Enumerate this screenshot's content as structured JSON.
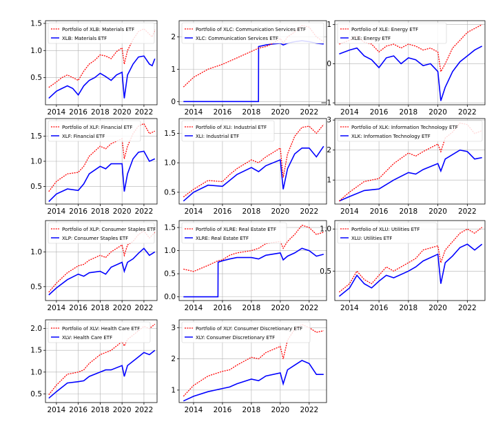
{
  "figure": {
    "colors": {
      "portfolio": "#ff0000",
      "etf": "#0000ff",
      "grid": "#b0b0b0",
      "axis": "#000000"
    },
    "x_ticks": [
      2014,
      2016,
      2018,
      2020,
      2022
    ]
  },
  "chart_data": [
    {
      "type": "line",
      "title": "",
      "xlabel": "",
      "ylabel": "",
      "xlim": [
        2013.0,
        2023.2
      ],
      "ylim": [
        0.0,
        1.55
      ],
      "yticks": [
        0.5,
        1.0,
        1.5
      ],
      "ytick_labels": [
        "0.5",
        "1.0",
        "1.5"
      ],
      "grid": true,
      "legend_position": "upper-left",
      "x": [
        2013.3,
        2014.0,
        2014.5,
        2015.0,
        2015.5,
        2016.0,
        2016.5,
        2017.0,
        2017.5,
        2018.0,
        2018.5,
        2019.0,
        2019.5,
        2020.0,
        2020.2,
        2020.5,
        2021.0,
        2021.5,
        2022.0,
        2022.5,
        2022.75,
        2023.0
      ],
      "series": [
        {
          "name": "Portfolio of XLB: Materials ETF",
          "role": "portfolio",
          "values": [
            0.32,
            0.42,
            0.5,
            0.55,
            0.5,
            0.45,
            0.62,
            0.75,
            0.82,
            0.92,
            0.9,
            0.85,
            0.98,
            1.05,
            0.75,
            1.0,
            1.2,
            1.35,
            1.4,
            1.3,
            1.25,
            1.38
          ]
        },
        {
          "name": "XLB: Materials ETF",
          "role": "etf",
          "values": [
            0.12,
            0.25,
            0.3,
            0.35,
            0.3,
            0.18,
            0.35,
            0.45,
            0.5,
            0.58,
            0.52,
            0.45,
            0.55,
            0.6,
            0.12,
            0.55,
            0.75,
            0.88,
            0.9,
            0.75,
            0.72,
            0.85
          ]
        }
      ]
    },
    {
      "type": "line",
      "title": "",
      "xlabel": "",
      "ylabel": "",
      "xlim": [
        2013.0,
        2023.2
      ],
      "ylim": [
        -0.1,
        2.5
      ],
      "yticks": [
        0,
        1,
        2
      ],
      "ytick_labels": [
        "0",
        "1",
        "2"
      ],
      "grid": true,
      "legend_position": "upper-left",
      "x": [
        2013.3,
        2014.0,
        2015.0,
        2016.0,
        2017.0,
        2018.0,
        2018.49,
        2018.5,
        2019.0,
        2019.5,
        2020.0,
        2020.2,
        2020.5,
        2021.0,
        2021.5,
        2022.0,
        2022.5,
        2023.0
      ],
      "series": [
        {
          "name": "Portfolio of XLC: Communication Services ETF",
          "role": "portfolio",
          "values": [
            0.45,
            0.75,
            1.0,
            1.15,
            1.35,
            1.55,
            1.65,
            1.65,
            1.7,
            1.8,
            1.95,
            1.8,
            2.0,
            2.15,
            2.35,
            2.3,
            2.0,
            1.85
          ]
        },
        {
          "name": "XLC: Communication Services ETF",
          "role": "etf",
          "values": [
            0,
            0,
            0,
            0,
            0,
            0,
            0,
            1.7,
            1.75,
            1.78,
            1.8,
            1.75,
            1.8,
            1.85,
            1.88,
            1.85,
            1.8,
            1.78
          ]
        }
      ]
    },
    {
      "type": "line",
      "title": "",
      "xlabel": "",
      "ylabel": "",
      "xlim": [
        2013.0,
        2023.2
      ],
      "ylim": [
        -1.05,
        1.1
      ],
      "yticks": [
        -1,
        0,
        1
      ],
      "ytick_labels": [
        "−1",
        "0",
        "1"
      ],
      "grid": true,
      "legend_position": "upper-left",
      "x": [
        2013.3,
        2014.0,
        2014.5,
        2015.0,
        2015.5,
        2016.0,
        2016.5,
        2017.0,
        2017.5,
        2018.0,
        2018.5,
        2019.0,
        2019.5,
        2020.0,
        2020.2,
        2020.5,
        2021.0,
        2021.5,
        2022.0,
        2022.5,
        2023.0
      ],
      "series": [
        {
          "name": "Portfolio of XLE: Energy ETF",
          "role": "portfolio",
          "values": [
            0.5,
            0.6,
            0.7,
            0.55,
            0.5,
            0.3,
            0.45,
            0.5,
            0.4,
            0.5,
            0.45,
            0.35,
            0.4,
            0.3,
            -0.2,
            0.0,
            0.4,
            0.6,
            0.8,
            0.9,
            1.0
          ]
        },
        {
          "name": "XLE: Energy ETF",
          "role": "etf",
          "values": [
            0.25,
            0.35,
            0.4,
            0.2,
            0.1,
            -0.1,
            0.15,
            0.2,
            0.0,
            0.15,
            0.1,
            -0.05,
            0.0,
            -0.2,
            -0.95,
            -0.6,
            -0.2,
            0.05,
            0.2,
            0.35,
            0.45
          ]
        }
      ]
    },
    {
      "type": "line",
      "title": "",
      "xlabel": "",
      "ylabel": "",
      "xlim": [
        2013.0,
        2023.2
      ],
      "ylim": [
        0.15,
        1.85
      ],
      "yticks": [
        0.5,
        1.0,
        1.5
      ],
      "ytick_labels": [
        "0.5",
        "1.0",
        "1.5"
      ],
      "grid": true,
      "legend_position": "upper-left",
      "x": [
        2013.3,
        2014.0,
        2015.0,
        2016.0,
        2016.5,
        2017.0,
        2018.0,
        2018.5,
        2019.0,
        2020.0,
        2020.2,
        2020.5,
        2021.0,
        2021.5,
        2022.0,
        2022.5,
        2023.0
      ],
      "series": [
        {
          "name": "Portfolio of XLF: Financial ETF",
          "role": "portfolio",
          "values": [
            0.4,
            0.6,
            0.75,
            0.78,
            0.9,
            1.1,
            1.3,
            1.25,
            1.35,
            1.45,
            1.05,
            1.3,
            1.55,
            1.7,
            1.75,
            1.55,
            1.6
          ]
        },
        {
          "name": "XLF: Financial ETF",
          "role": "etf",
          "values": [
            0.2,
            0.35,
            0.45,
            0.42,
            0.55,
            0.75,
            0.9,
            0.85,
            0.95,
            0.95,
            0.4,
            0.75,
            1.05,
            1.18,
            1.2,
            1.0,
            1.05
          ]
        }
      ]
    },
    {
      "type": "line",
      "title": "",
      "xlabel": "",
      "ylabel": "",
      "xlim": [
        2013.0,
        2023.2
      ],
      "ylim": [
        0.3,
        1.75
      ],
      "yticks": [
        0.5,
        1.0,
        1.5
      ],
      "ytick_labels": [
        "0.5",
        "1.0",
        "1.5"
      ],
      "grid": true,
      "legend_position": "upper-left",
      "x": [
        2013.3,
        2014.0,
        2015.0,
        2016.0,
        2016.5,
        2017.0,
        2018.0,
        2018.5,
        2019.0,
        2020.0,
        2020.2,
        2020.5,
        2021.0,
        2021.5,
        2022.0,
        2022.5,
        2023.0
      ],
      "series": [
        {
          "name": "Portfolio of XLI: Industrial ETF",
          "role": "portfolio",
          "values": [
            0.42,
            0.55,
            0.7,
            0.68,
            0.8,
            0.9,
            1.05,
            1.0,
            1.1,
            1.25,
            0.75,
            1.15,
            1.45,
            1.6,
            1.62,
            1.5,
            1.65
          ]
        },
        {
          "name": "XLI: Industrial ETF",
          "role": "etf",
          "values": [
            0.35,
            0.5,
            0.62,
            0.6,
            0.7,
            0.8,
            0.92,
            0.85,
            0.95,
            1.05,
            0.55,
            0.9,
            1.15,
            1.25,
            1.25,
            1.1,
            1.28
          ]
        }
      ]
    },
    {
      "type": "line",
      "title": "",
      "xlabel": "",
      "ylabel": "",
      "xlim": [
        2013.0,
        2023.2
      ],
      "ylim": [
        0.2,
        3.05
      ],
      "yticks": [
        1,
        2,
        3
      ],
      "ytick_labels": [
        "1",
        "2",
        "3"
      ],
      "grid": true,
      "legend_position": "upper-left",
      "x": [
        2013.3,
        2014.0,
        2015.0,
        2016.0,
        2016.5,
        2017.0,
        2018.0,
        2018.5,
        2019.0,
        2020.0,
        2020.2,
        2020.5,
        2021.0,
        2021.5,
        2022.0,
        2022.5,
        2023.0
      ],
      "series": [
        {
          "name": "Portfolio of XLK: Information Technology ETF",
          "role": "portfolio",
          "values": [
            0.3,
            0.6,
            0.95,
            1.05,
            1.3,
            1.55,
            1.9,
            1.8,
            1.95,
            2.2,
            1.95,
            2.4,
            2.6,
            2.9,
            2.85,
            2.55,
            2.65
          ]
        },
        {
          "name": "XLK: Information Technology ETF",
          "role": "etf",
          "values": [
            0.3,
            0.45,
            0.65,
            0.7,
            0.85,
            1.0,
            1.25,
            1.2,
            1.35,
            1.55,
            1.3,
            1.7,
            1.85,
            2.0,
            1.95,
            1.7,
            1.75
          ]
        }
      ]
    },
    {
      "type": "line",
      "title": "",
      "xlabel": "",
      "ylabel": "",
      "xlim": [
        2013.0,
        2023.2
      ],
      "ylim": [
        0.3,
        1.45
      ],
      "yticks": [
        0.5,
        1.0
      ],
      "ytick_labels": [
        "0.5",
        "1.0"
      ],
      "grid": true,
      "legend_position": "upper-left",
      "x": [
        2013.3,
        2014.0,
        2015.0,
        2016.0,
        2016.5,
        2017.0,
        2018.0,
        2018.5,
        2019.0,
        2020.0,
        2020.2,
        2020.5,
        2021.0,
        2021.5,
        2022.0,
        2022.5,
        2023.0
      ],
      "series": [
        {
          "name": "Portfolio of XLP: Consumer Staples ETF",
          "role": "portfolio",
          "values": [
            0.42,
            0.55,
            0.7,
            0.8,
            0.82,
            0.88,
            0.95,
            0.92,
            1.0,
            1.1,
            0.95,
            1.1,
            1.15,
            1.25,
            1.3,
            1.2,
            1.28
          ]
        },
        {
          "name": "XLP: Consumer Staples ETF",
          "role": "etf",
          "values": [
            0.38,
            0.48,
            0.6,
            0.68,
            0.65,
            0.7,
            0.72,
            0.68,
            0.78,
            0.85,
            0.72,
            0.85,
            0.9,
            0.98,
            1.05,
            0.95,
            1.0
          ]
        }
      ]
    },
    {
      "type": "line",
      "title": "",
      "xlabel": "",
      "ylabel": "",
      "xlim": [
        2013.0,
        2023.2
      ],
      "ylim": [
        -0.08,
        1.65
      ],
      "yticks": [
        0.0,
        0.5,
        1.0,
        1.5
      ],
      "ytick_labels": [
        "0.0",
        "0.5",
        "1.0",
        "1.5"
      ],
      "grid": true,
      "legend_position": "upper-left",
      "x": [
        2013.3,
        2014.0,
        2015.0,
        2015.69,
        2015.7,
        2016.0,
        2016.5,
        2017.0,
        2018.0,
        2018.5,
        2019.0,
        2020.0,
        2020.2,
        2020.5,
        2021.0,
        2021.5,
        2022.0,
        2022.5,
        2023.0
      ],
      "series": [
        {
          "name": "Portfolio of XLRE: Real Estate ETF",
          "role": "portfolio",
          "values": [
            0.6,
            0.55,
            0.68,
            0.78,
            0.78,
            0.8,
            0.9,
            0.95,
            1.0,
            1.05,
            1.15,
            1.2,
            1.05,
            1.2,
            1.35,
            1.55,
            1.5,
            1.35,
            1.4
          ]
        },
        {
          "name": "XLRE: Real Estate ETF",
          "role": "etf",
          "values": [
            0,
            0,
            0,
            0,
            0.75,
            0.78,
            0.82,
            0.85,
            0.85,
            0.82,
            0.9,
            0.95,
            0.8,
            0.88,
            0.95,
            1.05,
            1.0,
            0.88,
            0.92
          ]
        }
      ]
    },
    {
      "type": "line",
      "title": "",
      "xlabel": "",
      "ylabel": "",
      "xlim": [
        2013.0,
        2023.2
      ],
      "ylim": [
        0.15,
        1.1
      ],
      "yticks": [
        0.5,
        1.0
      ],
      "ytick_labels": [
        "0.5",
        "1.0"
      ],
      "grid": true,
      "legend_position": "upper-left",
      "x": [
        2013.3,
        2014.0,
        2014.5,
        2015.0,
        2015.5,
        2016.0,
        2016.5,
        2017.0,
        2018.0,
        2018.5,
        2019.0,
        2020.0,
        2020.2,
        2020.5,
        2021.0,
        2021.5,
        2022.0,
        2022.5,
        2023.0
      ],
      "series": [
        {
          "name": "Portfolio of XLU: Utilities ETF",
          "role": "portfolio",
          "values": [
            0.25,
            0.35,
            0.5,
            0.4,
            0.35,
            0.45,
            0.55,
            0.5,
            0.6,
            0.65,
            0.75,
            0.8,
            0.6,
            0.75,
            0.85,
            0.95,
            1.0,
            0.95,
            1.02
          ]
        },
        {
          "name": "XLU: Utilities ETF",
          "role": "etf",
          "values": [
            0.2,
            0.3,
            0.45,
            0.35,
            0.3,
            0.38,
            0.45,
            0.42,
            0.5,
            0.55,
            0.62,
            0.7,
            0.35,
            0.6,
            0.68,
            0.78,
            0.82,
            0.75,
            0.82
          ]
        }
      ]
    },
    {
      "type": "line",
      "title": "",
      "xlabel": "",
      "ylabel": "",
      "xlim": [
        2013.0,
        2023.2
      ],
      "ylim": [
        0.3,
        2.2
      ],
      "yticks": [
        0.5,
        1.0,
        1.5,
        2.0
      ],
      "ytick_labels": [
        "0.5",
        "1.0",
        "1.5",
        "2.0"
      ],
      "grid": true,
      "legend_position": "upper-left",
      "x": [
        2013.3,
        2014.0,
        2015.0,
        2016.0,
        2016.5,
        2017.0,
        2018.0,
        2018.5,
        2019.0,
        2020.0,
        2020.2,
        2020.5,
        2021.0,
        2021.5,
        2022.0,
        2022.5,
        2023.0
      ],
      "series": [
        {
          "name": "Portfolio of XLV: Health Care ETF",
          "role": "portfolio",
          "values": [
            0.48,
            0.7,
            0.95,
            1.0,
            1.05,
            1.2,
            1.4,
            1.45,
            1.5,
            1.7,
            1.6,
            1.75,
            1.85,
            1.95,
            2.05,
            2.0,
            2.1
          ]
        },
        {
          "name": "XLV: Health Care ETF",
          "role": "etf",
          "values": [
            0.4,
            0.55,
            0.75,
            0.78,
            0.8,
            0.9,
            1.0,
            1.05,
            1.05,
            1.15,
            0.9,
            1.15,
            1.25,
            1.35,
            1.45,
            1.4,
            1.5
          ]
        }
      ]
    },
    {
      "type": "line",
      "title": "",
      "xlabel": "",
      "ylabel": "",
      "xlim": [
        2013.0,
        2023.2
      ],
      "ylim": [
        0.6,
        3.25
      ],
      "yticks": [
        1,
        2,
        3
      ],
      "ytick_labels": [
        "1",
        "2",
        "3"
      ],
      "grid": true,
      "legend_position": "upper-left",
      "x": [
        2013.3,
        2014.0,
        2015.0,
        2016.0,
        2016.5,
        2017.0,
        2018.0,
        2018.5,
        2019.0,
        2020.0,
        2020.2,
        2020.5,
        2021.0,
        2021.5,
        2022.0,
        2022.5,
        2023.0
      ],
      "series": [
        {
          "name": "Portfolio of XLY: Consumer Discretionary ETF",
          "role": "portfolio",
          "values": [
            0.8,
            1.15,
            1.45,
            1.6,
            1.65,
            1.8,
            2.05,
            2.0,
            2.2,
            2.4,
            2.0,
            2.6,
            2.95,
            3.1,
            3.0,
            2.85,
            2.9
          ]
        },
        {
          "name": "XLY: Consumer Discretionary ETF",
          "role": "etf",
          "values": [
            0.65,
            0.8,
            0.95,
            1.05,
            1.1,
            1.2,
            1.35,
            1.3,
            1.45,
            1.55,
            1.2,
            1.65,
            1.8,
            1.95,
            1.85,
            1.5,
            1.5
          ]
        }
      ]
    }
  ]
}
